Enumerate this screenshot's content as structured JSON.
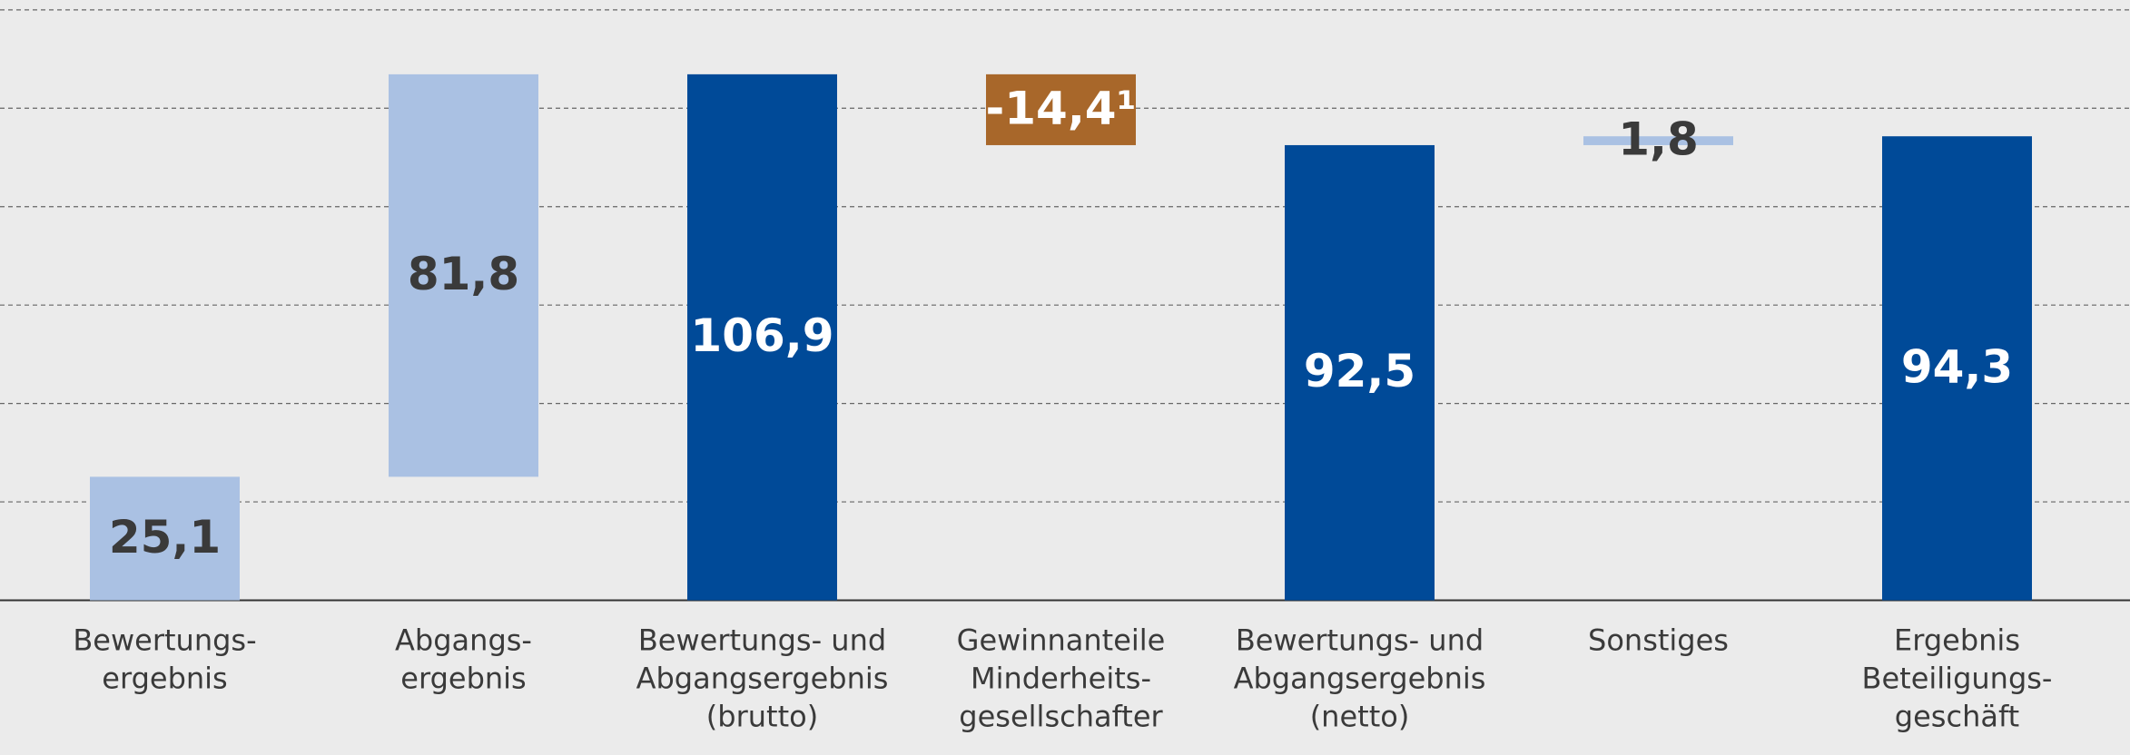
{
  "chart_data": {
    "type": "waterfall",
    "categories": [
      [
        "Bewertungs-",
        "ergebnis"
      ],
      [
        "Abgangs-",
        "ergebnis"
      ],
      [
        "Bewertungs- und",
        "Abgangsergebnis",
        "(brutto)"
      ],
      [
        "Gewinnanteile",
        "Minderheits-",
        "gesellschafter"
      ],
      [
        "Bewertungs- und",
        "Abgangsergebnis",
        "(netto)"
      ],
      [
        "Sonstiges"
      ],
      [
        "Ergebnis",
        "Beteiligungs-",
        "geschäft"
      ]
    ],
    "values": [
      25.1,
      81.8,
      106.9,
      -14.4,
      92.5,
      1.8,
      94.3
    ],
    "value_labels": [
      "25,1",
      "81,8",
      "106,9",
      "-14,4¹",
      "92,5",
      "1,8",
      "94,3"
    ],
    "totals": [
      false,
      false,
      true,
      false,
      true,
      false,
      true
    ],
    "colors": [
      "#aac1e3",
      "#aac1e3",
      "#004a98",
      "#a8672a",
      "#004a98",
      "#aac1e3",
      "#004a98"
    ],
    "label_colors": [
      "#3a3a3a",
      "#3a3a3a",
      "#ffffff",
      "#ffffff",
      "#ffffff",
      "#3a3a3a",
      "#ffffff"
    ],
    "ylim": [
      0,
      122
    ],
    "yticks": [
      0,
      20,
      40,
      60,
      80,
      100,
      120
    ],
    "grid": true
  }
}
